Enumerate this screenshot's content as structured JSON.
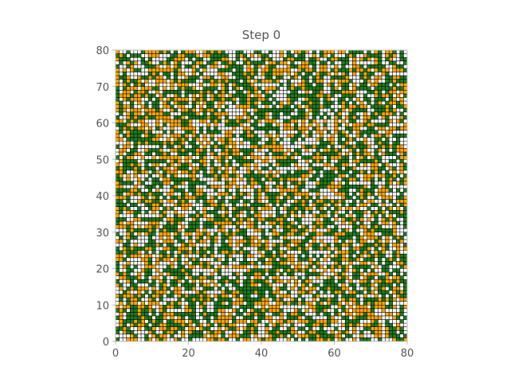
{
  "chart_data": {
    "type": "heatmap",
    "title": "Step 0",
    "xlabel": "",
    "ylabel": "",
    "xlim": [
      0,
      80
    ],
    "ylim": [
      0,
      80
    ],
    "grid": true,
    "grid_size": 80,
    "cell_states": [
      "empty",
      "tree",
      "fire"
    ],
    "colors": {
      "empty": "#ffffff",
      "tree": "#1e7b1e",
      "fire": "#ffa500",
      "gridline": "#000000",
      "axis": "#bbbbbb"
    },
    "x_ticks": [
      0,
      20,
      40,
      60,
      80
    ],
    "y_ticks": [
      0,
      10,
      20,
      30,
      40,
      50,
      60,
      70,
      80
    ],
    "x_tick_labels": [
      "0",
      "20",
      "40",
      "60",
      "80"
    ],
    "y_tick_labels": [
      "0",
      "10",
      "20",
      "30",
      "40",
      "50",
      "60",
      "70",
      "80"
    ],
    "state_generation": {
      "seed": 20240601,
      "tree_fraction": 0.36,
      "fire_fraction": 0.28
    }
  }
}
